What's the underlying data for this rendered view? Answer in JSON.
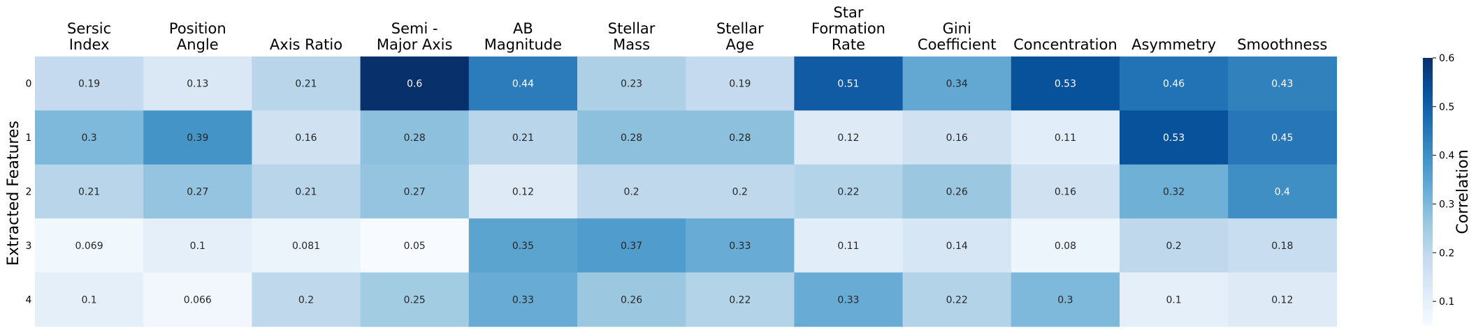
{
  "chart_data": {
    "type": "heatmap",
    "title": "",
    "ylabel": "Extracted Features",
    "colorbar_label": "Correlation",
    "colorbar_range": [
      0.05,
      0.6
    ],
    "colorbar_ticks": [
      "0.1",
      "0.2",
      "0.3",
      "0.4",
      "0.5",
      "0.6"
    ],
    "colormap": "Blues",
    "columns": [
      [
        "Sersic",
        "Index"
      ],
      [
        "Position",
        "Angle"
      ],
      [
        "Axis Ratio"
      ],
      [
        "Semi -",
        "Major Axis"
      ],
      [
        "AB",
        "Magnitude"
      ],
      [
        "Stellar",
        "Mass"
      ],
      [
        "Stellar",
        "Age"
      ],
      [
        "Star",
        "Formation",
        "Rate"
      ],
      [
        "Gini",
        "Coefficient"
      ],
      [
        "Concentration"
      ],
      [
        "Asymmetry"
      ],
      [
        "Smoothness"
      ]
    ],
    "rows": [
      "0",
      "1",
      "2",
      "3",
      "4"
    ],
    "values": [
      [
        0.19,
        0.13,
        0.21,
        0.6,
        0.44,
        0.23,
        0.19,
        0.51,
        0.34,
        0.53,
        0.46,
        0.43
      ],
      [
        0.3,
        0.39,
        0.16,
        0.28,
        0.21,
        0.28,
        0.28,
        0.12,
        0.16,
        0.11,
        0.53,
        0.45
      ],
      [
        0.21,
        0.27,
        0.21,
        0.27,
        0.12,
        0.2,
        0.2,
        0.22,
        0.26,
        0.16,
        0.32,
        0.4
      ],
      [
        0.069,
        0.1,
        0.081,
        0.05,
        0.35,
        0.37,
        0.33,
        0.11,
        0.14,
        0.08,
        0.2,
        0.18
      ],
      [
        0.1,
        0.066,
        0.2,
        0.25,
        0.33,
        0.26,
        0.22,
        0.33,
        0.22,
        0.3,
        0.1,
        0.12
      ]
    ]
  }
}
